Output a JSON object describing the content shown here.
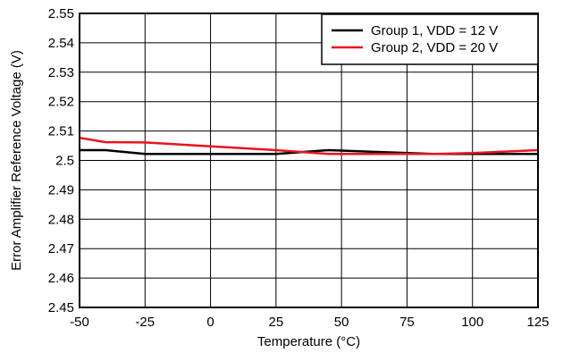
{
  "chart_data": {
    "type": "line",
    "title": "",
    "xlabel": "Temperature (°C)",
    "ylabel": "Error Amplifier Reference Voltage (V)",
    "xlim": [
      -50,
      125
    ],
    "ylim": [
      2.45,
      2.55
    ],
    "x_ticks": [
      -50,
      -25,
      0,
      25,
      50,
      75,
      100,
      125
    ],
    "y_ticks": [
      2.45,
      2.46,
      2.47,
      2.48,
      2.49,
      2.5,
      2.51,
      2.52,
      2.53,
      2.54,
      2.55
    ],
    "x_tick_labels": [
      "-50",
      "-25",
      "0",
      "25",
      "50",
      "75",
      "100",
      "125"
    ],
    "y_tick_labels": [
      "2.45",
      "2.46",
      "2.47",
      "2.48",
      "2.49",
      "2.5",
      "2.51",
      "2.52",
      "2.53",
      "2.54",
      "2.55"
    ],
    "grid": true,
    "legend_position": "top-right",
    "series": [
      {
        "name": "Group 1, VDD = 12 V",
        "color": "#000000",
        "x": [
          -50,
          -40,
          -25,
          0,
          25,
          45,
          60,
          85,
          100,
          125
        ],
        "y": [
          2.5035,
          2.5035,
          2.5022,
          2.5022,
          2.5022,
          2.5035,
          2.503,
          2.5022,
          2.5022,
          2.5022
        ]
      },
      {
        "name": "Group 2, VDD = 20 V",
        "color": "#e8141c",
        "x": [
          -50,
          -40,
          -25,
          0,
          25,
          45,
          60,
          85,
          100,
          125
        ],
        "y": [
          2.5077,
          2.5062,
          2.5061,
          2.5048,
          2.5035,
          2.5022,
          2.5022,
          2.5022,
          2.5025,
          2.5035
        ]
      }
    ]
  }
}
